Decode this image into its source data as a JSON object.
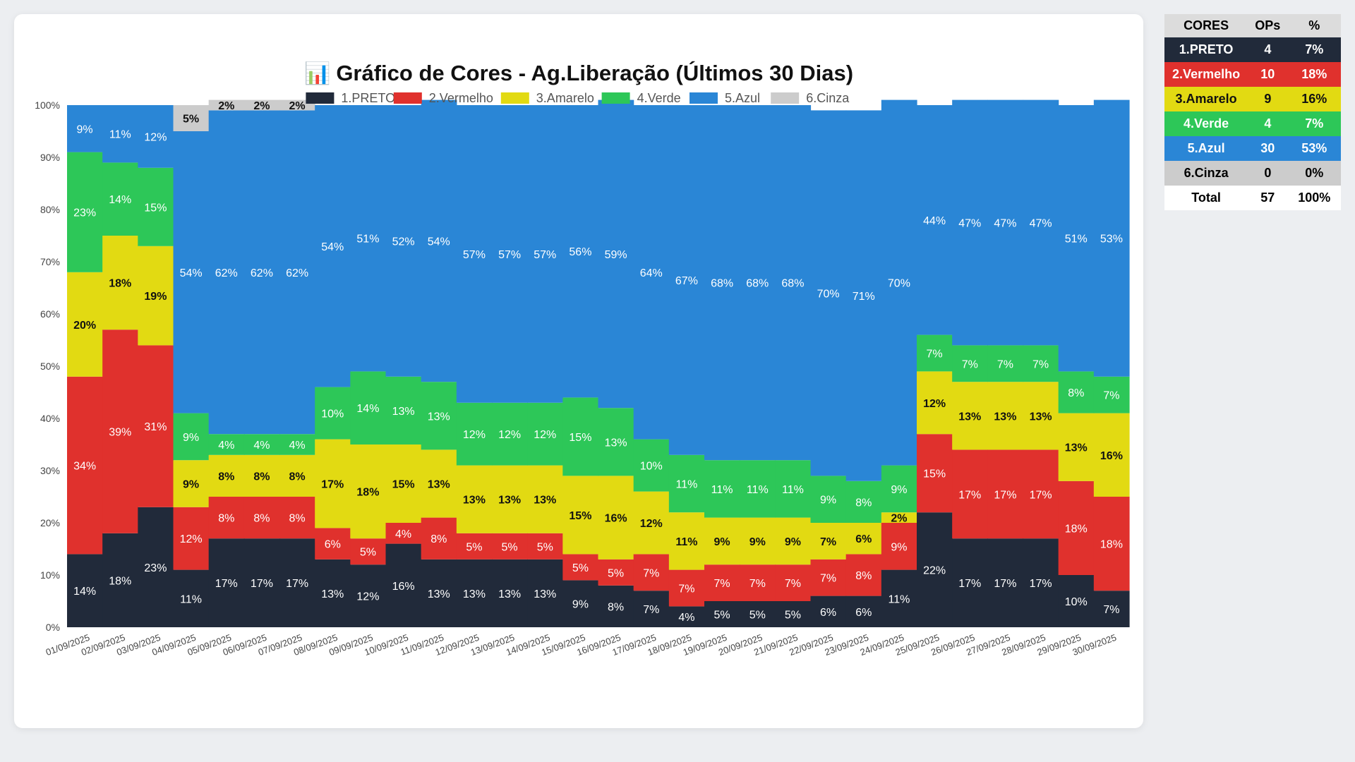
{
  "chart_data": {
    "type": "bar",
    "stacked": true,
    "title_icon": "📊",
    "title": "Gráfico de Cores - Ag.Liberação (Últimos 30 Dias)",
    "legend_position": "top",
    "ylim": [
      0,
      100
    ],
    "yticks": [
      "0%",
      "10%",
      "20%",
      "30%",
      "40%",
      "50%",
      "60%",
      "70%",
      "80%",
      "90%",
      "100%"
    ],
    "categories": [
      "01/09/2025",
      "02/09/2025",
      "03/09/2025",
      "04/09/2025",
      "05/09/2025",
      "06/09/2025",
      "07/09/2025",
      "08/09/2025",
      "09/09/2025",
      "10/09/2025",
      "11/09/2025",
      "12/09/2025",
      "13/09/2025",
      "14/09/2025",
      "15/09/2025",
      "16/09/2025",
      "17/09/2025",
      "18/09/2025",
      "19/09/2025",
      "20/09/2025",
      "21/09/2025",
      "22/09/2025",
      "23/09/2025",
      "24/09/2025",
      "25/09/2025",
      "26/09/2025",
      "27/09/2025",
      "28/09/2025",
      "29/09/2025",
      "30/09/2025"
    ],
    "series": [
      {
        "name": "1.PRETO",
        "color": "#212a3a",
        "label_color": "#ffffff",
        "values": [
          14,
          18,
          23,
          11,
          17,
          17,
          17,
          13,
          12,
          16,
          13,
          13,
          13,
          13,
          9,
          8,
          7,
          4,
          5,
          5,
          5,
          6,
          6,
          11,
          22,
          17,
          17,
          17,
          10,
          7
        ]
      },
      {
        "name": "2.Vermelho",
        "color": "#e0312d",
        "label_color": "#ffffff",
        "values": [
          34,
          39,
          31,
          12,
          8,
          8,
          8,
          6,
          5,
          4,
          8,
          5,
          5,
          5,
          5,
          5,
          7,
          7,
          7,
          7,
          7,
          7,
          8,
          9,
          15,
          17,
          17,
          17,
          18,
          18
        ]
      },
      {
        "name": "3.Amarelo",
        "color": "#e2da12",
        "label_color": "#111111",
        "values": [
          20,
          18,
          19,
          9,
          8,
          8,
          8,
          17,
          18,
          15,
          13,
          13,
          13,
          13,
          15,
          16,
          12,
          11,
          9,
          9,
          9,
          7,
          6,
          2,
          12,
          13,
          13,
          13,
          13,
          16
        ]
      },
      {
        "name": "4.Verde",
        "color": "#2dc758",
        "label_color": "#ffffff",
        "values": [
          23,
          14,
          15,
          9,
          4,
          4,
          4,
          10,
          14,
          13,
          13,
          12,
          12,
          12,
          15,
          13,
          10,
          11,
          11,
          11,
          11,
          9,
          8,
          9,
          7,
          7,
          7,
          7,
          8,
          7
        ]
      },
      {
        "name": "5.Azul",
        "color": "#2a86d6",
        "label_color": "#ffffff",
        "values": [
          9,
          11,
          12,
          54,
          62,
          62,
          62,
          54,
          51,
          52,
          54,
          57,
          57,
          57,
          56,
          59,
          64,
          67,
          68,
          68,
          68,
          70,
          71,
          70,
          44,
          47,
          47,
          47,
          51,
          53
        ]
      },
      {
        "name": "6.Cinza",
        "color": "#cccccc",
        "label_color": "#111111",
        "values": [
          0,
          0,
          0,
          5,
          2,
          2,
          2,
          0,
          0,
          0,
          0,
          0,
          0,
          0,
          0,
          0,
          0,
          0,
          0,
          0,
          0,
          0,
          0,
          0,
          0,
          0,
          0,
          0,
          0,
          0
        ]
      }
    ]
  },
  "summary": {
    "headers": [
      "CORES",
      "OPs",
      "%"
    ],
    "rows": [
      {
        "name": "1.PRETO",
        "ops": "4",
        "pct": "7%",
        "bg": "#212a3a",
        "fg": "#ffffff"
      },
      {
        "name": "2.Vermelho",
        "ops": "10",
        "pct": "18%",
        "bg": "#e0312d",
        "fg": "#ffffff"
      },
      {
        "name": "3.Amarelo",
        "ops": "9",
        "pct": "16%",
        "bg": "#e2da12",
        "fg": "#111111"
      },
      {
        "name": "4.Verde",
        "ops": "4",
        "pct": "7%",
        "bg": "#2dc758",
        "fg": "#ffffff"
      },
      {
        "name": "5.Azul",
        "ops": "30",
        "pct": "53%",
        "bg": "#2a86d6",
        "fg": "#ffffff"
      },
      {
        "name": "6.Cinza",
        "ops": "0",
        "pct": "0%",
        "bg": "#cccccc",
        "fg": "#000000"
      },
      {
        "name": "Total",
        "ops": "57",
        "pct": "100%",
        "bg": "#ffffff",
        "fg": "#000000"
      }
    ]
  }
}
